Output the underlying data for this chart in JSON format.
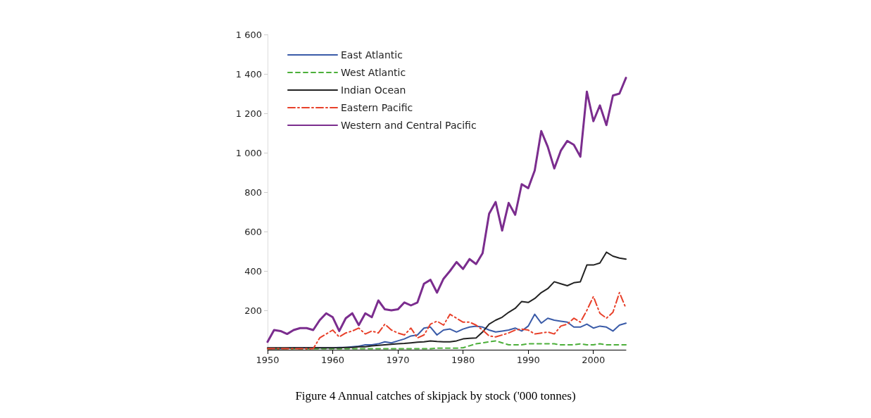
{
  "chart_data": {
    "type": "line",
    "title": "Figure 4 Annual catches of skipjack by stock ('000 tonnes)",
    "x": [
      1950,
      1951,
      1952,
      1953,
      1954,
      1955,
      1956,
      1957,
      1958,
      1959,
      1960,
      1961,
      1962,
      1963,
      1964,
      1965,
      1966,
      1967,
      1968,
      1969,
      1970,
      1971,
      1972,
      1973,
      1974,
      1975,
      1976,
      1977,
      1978,
      1979,
      1980,
      1981,
      1982,
      1983,
      1984,
      1985,
      1986,
      1987,
      1988,
      1989,
      1990,
      1991,
      1992,
      1993,
      1994,
      1995,
      1996,
      1997,
      1998,
      1999,
      2000,
      2001,
      2002,
      2003,
      2004,
      2005
    ],
    "series": [
      {
        "name": "East Atlantic",
        "color": "#3a5ba8",
        "line_style": "solid",
        "values": [
          5,
          5,
          5,
          8,
          10,
          10,
          10,
          10,
          10,
          10,
          10,
          12,
          12,
          15,
          18,
          25,
          25,
          30,
          40,
          35,
          45,
          55,
          70,
          75,
          110,
          115,
          75,
          100,
          105,
          90,
          105,
          115,
          120,
          115,
          100,
          90,
          95,
          100,
          110,
          95,
          120,
          180,
          135,
          160,
          150,
          145,
          140,
          115,
          115,
          130,
          110,
          120,
          115,
          95,
          125,
          135
        ]
      },
      {
        "name": "West Atlantic",
        "color": "#4caf3a",
        "line_style": "dashed",
        "values": [
          5,
          5,
          5,
          5,
          5,
          5,
          5,
          5,
          5,
          5,
          5,
          5,
          5,
          5,
          5,
          5,
          5,
          5,
          5,
          5,
          5,
          5,
          5,
          5,
          5,
          5,
          8,
          8,
          8,
          8,
          10,
          20,
          30,
          35,
          40,
          45,
          35,
          25,
          25,
          25,
          30,
          30,
          30,
          30,
          30,
          25,
          25,
          25,
          30,
          25,
          25,
          30,
          25,
          25,
          25,
          25
        ]
      },
      {
        "name": "Indian Ocean",
        "color": "#222222",
        "line_style": "solid",
        "values": [
          10,
          10,
          10,
          10,
          10,
          10,
          10,
          10,
          10,
          10,
          10,
          10,
          12,
          12,
          15,
          15,
          20,
          22,
          25,
          28,
          30,
          32,
          35,
          38,
          40,
          45,
          42,
          40,
          40,
          45,
          55,
          58,
          60,
          90,
          130,
          150,
          165,
          190,
          210,
          245,
          240,
          260,
          290,
          310,
          345,
          335,
          325,
          340,
          345,
          430,
          430,
          440,
          495,
          475,
          465,
          460
        ]
      },
      {
        "name": "Eastern Pacific",
        "color": "#e8402a",
        "line_style": "dashdot",
        "values": [
          5,
          5,
          5,
          5,
          5,
          5,
          5,
          5,
          60,
          80,
          100,
          65,
          85,
          95,
          110,
          80,
          95,
          85,
          130,
          100,
          85,
          75,
          110,
          60,
          75,
          130,
          145,
          125,
          180,
          160,
          140,
          140,
          125,
          100,
          70,
          65,
          75,
          85,
          100,
          105,
          100,
          80,
          85,
          90,
          80,
          120,
          130,
          160,
          140,
          200,
          270,
          185,
          160,
          190,
          290,
          210
        ]
      },
      {
        "name": "Western and Central Pacific",
        "color": "#7b2d8e",
        "line_style": "solid",
        "values": [
          40,
          100,
          95,
          80,
          100,
          110,
          110,
          100,
          150,
          185,
          165,
          95,
          160,
          185,
          125,
          185,
          165,
          250,
          205,
          200,
          205,
          240,
          225,
          240,
          335,
          355,
          290,
          360,
          400,
          445,
          410,
          460,
          435,
          490,
          690,
          750,
          605,
          745,
          685,
          840,
          820,
          910,
          1110,
          1030,
          920,
          1010,
          1060,
          1040,
          980,
          1310,
          1160,
          1240,
          1140,
          1290,
          1300,
          1380
        ]
      }
    ],
    "xlim": [
      1950,
      2005
    ],
    "xticks": [
      1950,
      1960,
      1970,
      1980,
      1990,
      2000
    ],
    "ylim": [
      0,
      1600
    ],
    "yticks": [
      200,
      400,
      600,
      800,
      {
        "value": 1000,
        "label": "1 000"
      },
      {
        "value": 1200,
        "label": "1 200"
      },
      {
        "value": 1400,
        "label": "1 400"
      },
      {
        "value": 1600,
        "label": "1 600"
      }
    ],
    "grid": false,
    "legend": "top left",
    "marker": "none"
  }
}
